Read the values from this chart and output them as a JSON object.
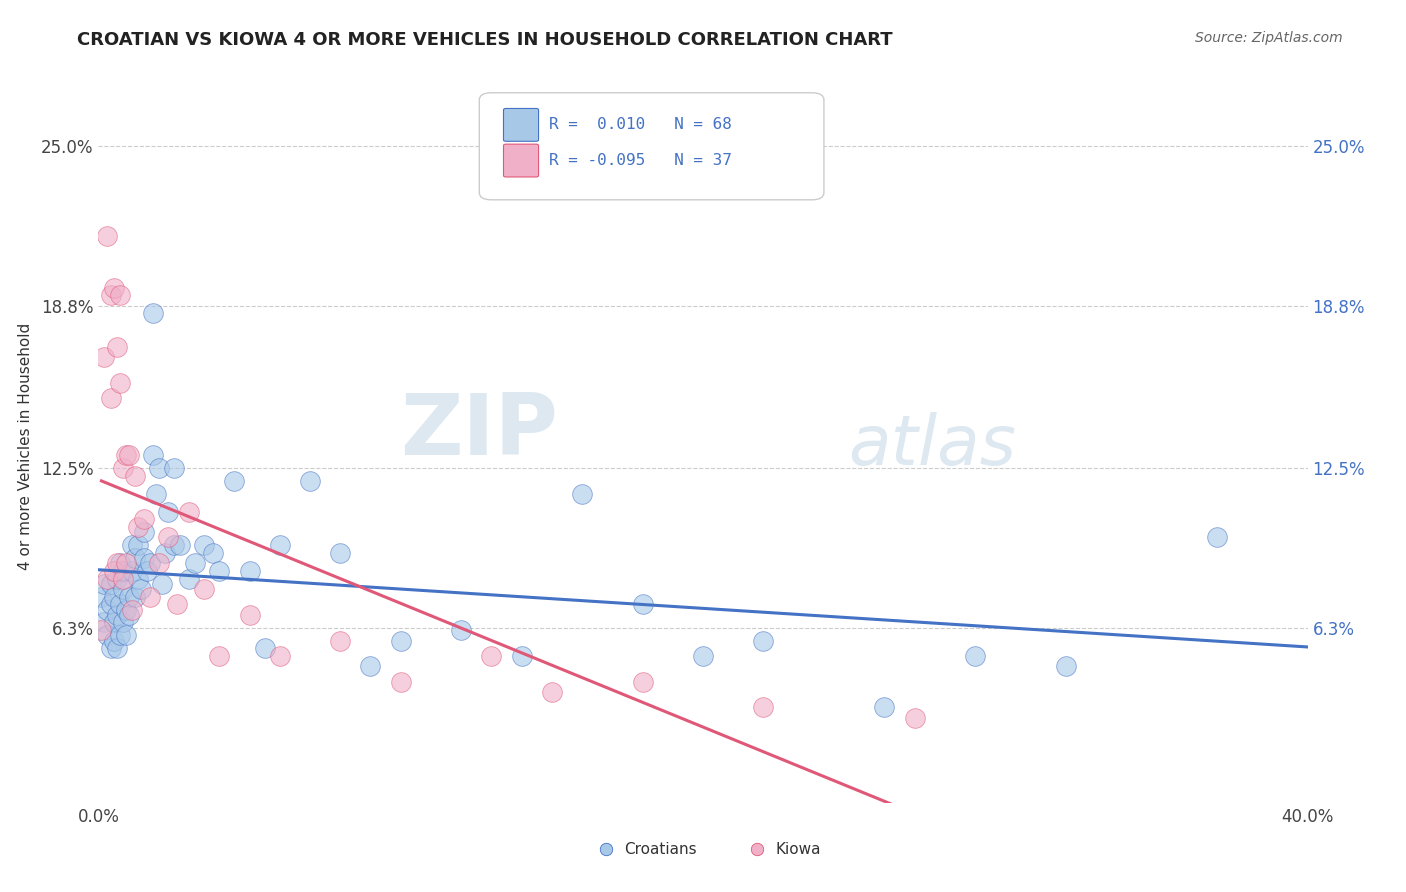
{
  "title": "CROATIAN VS KIOWA 4 OR MORE VEHICLES IN HOUSEHOLD CORRELATION CHART",
  "source": "Source: ZipAtlas.com",
  "ylabel": "4 or more Vehicles in Household",
  "xlim": [
    0.0,
    0.4
  ],
  "ylim": [
    -0.005,
    0.272
  ],
  "xtick_labels": [
    "0.0%",
    "40.0%"
  ],
  "ytick_labels": [
    "6.3%",
    "12.5%",
    "18.8%",
    "25.0%"
  ],
  "ytick_values": [
    0.063,
    0.125,
    0.188,
    0.25
  ],
  "legend_labels": [
    "Croatians",
    "Kiowa"
  ],
  "R_croatian": 0.01,
  "N_croatian": 68,
  "R_kiowa": -0.095,
  "N_kiowa": 37,
  "color_croatian": "#a8c8e8",
  "color_kiowa": "#f0b0c8",
  "trendline_croatian_color": "#4472c4",
  "trendline_kiowa_color": "#e05878",
  "watermark_zip": "ZIP",
  "watermark_atlas": "atlas",
  "background_color": "#ffffff",
  "grid_color": "#cccccc",
  "croatian_x": [
    0.001,
    0.002,
    0.002,
    0.003,
    0.003,
    0.004,
    0.004,
    0.004,
    0.005,
    0.005,
    0.005,
    0.006,
    0.006,
    0.006,
    0.007,
    0.007,
    0.007,
    0.008,
    0.008,
    0.008,
    0.009,
    0.009,
    0.01,
    0.01,
    0.011,
    0.011,
    0.012,
    0.012,
    0.013,
    0.013,
    0.014,
    0.015,
    0.015,
    0.016,
    0.017,
    0.018,
    0.018,
    0.019,
    0.02,
    0.021,
    0.022,
    0.023,
    0.025,
    0.025,
    0.027,
    0.03,
    0.032,
    0.035,
    0.038,
    0.04,
    0.045,
    0.05,
    0.055,
    0.06,
    0.07,
    0.08,
    0.09,
    0.1,
    0.12,
    0.14,
    0.16,
    0.18,
    0.2,
    0.22,
    0.26,
    0.29,
    0.32,
    0.37
  ],
  "croatian_y": [
    0.075,
    0.08,
    0.065,
    0.07,
    0.06,
    0.072,
    0.08,
    0.055,
    0.065,
    0.075,
    0.058,
    0.068,
    0.082,
    0.055,
    0.072,
    0.06,
    0.088,
    0.078,
    0.065,
    0.085,
    0.07,
    0.06,
    0.075,
    0.068,
    0.085,
    0.095,
    0.075,
    0.09,
    0.095,
    0.082,
    0.078,
    0.09,
    0.1,
    0.085,
    0.088,
    0.13,
    0.185,
    0.115,
    0.125,
    0.08,
    0.092,
    0.108,
    0.095,
    0.125,
    0.095,
    0.082,
    0.088,
    0.095,
    0.092,
    0.085,
    0.12,
    0.085,
    0.055,
    0.095,
    0.12,
    0.092,
    0.048,
    0.058,
    0.062,
    0.052,
    0.115,
    0.072,
    0.052,
    0.058,
    0.032,
    0.052,
    0.048,
    0.098
  ],
  "kiowa_x": [
    0.001,
    0.002,
    0.003,
    0.003,
    0.004,
    0.004,
    0.005,
    0.005,
    0.006,
    0.006,
    0.007,
    0.007,
    0.008,
    0.008,
    0.009,
    0.009,
    0.01,
    0.011,
    0.012,
    0.013,
    0.015,
    0.017,
    0.02,
    0.023,
    0.026,
    0.03,
    0.035,
    0.04,
    0.05,
    0.06,
    0.08,
    0.1,
    0.13,
    0.15,
    0.18,
    0.22,
    0.27
  ],
  "kiowa_y": [
    0.062,
    0.168,
    0.082,
    0.215,
    0.152,
    0.192,
    0.085,
    0.195,
    0.172,
    0.088,
    0.158,
    0.192,
    0.125,
    0.082,
    0.13,
    0.088,
    0.13,
    0.07,
    0.122,
    0.102,
    0.105,
    0.075,
    0.088,
    0.098,
    0.072,
    0.108,
    0.078,
    0.052,
    0.068,
    0.052,
    0.058,
    0.042,
    0.052,
    0.038,
    0.042,
    0.032,
    0.028
  ]
}
